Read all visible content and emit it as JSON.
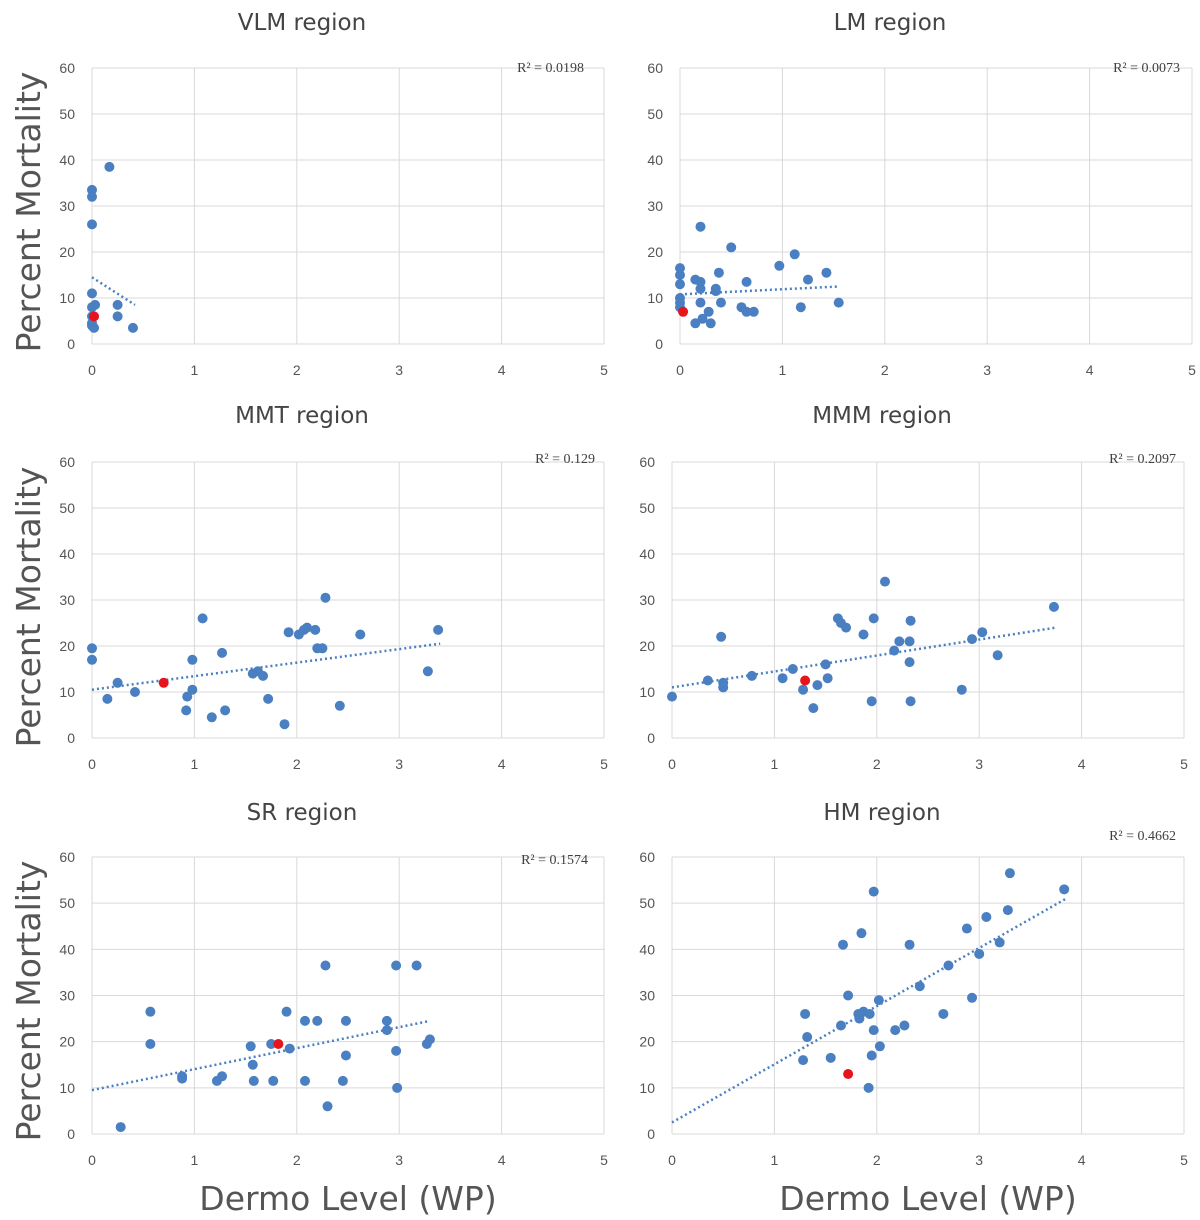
{
  "figure": {
    "ylabel": "Percent Mortality",
    "xlabel": "Dermo Level (WP)"
  },
  "chart_data": [
    {
      "type": "scatter",
      "title": "VLM region",
      "r2_label": "R² = 0.0198",
      "xlim": [
        0,
        5
      ],
      "ylim": [
        0,
        60
      ],
      "xticks": [
        "0",
        "1",
        "2",
        "3",
        "4",
        "5"
      ],
      "yticks": [
        "0",
        "10",
        "20",
        "30",
        "40",
        "50",
        "60"
      ],
      "grid": true,
      "colors": {
        "points": "#4a7fc1",
        "highlight": "#e8141c",
        "trend": "#4a7fc1"
      },
      "points": [
        [
          0,
          33.5
        ],
        [
          0,
          32
        ],
        [
          0,
          26
        ],
        [
          0.17,
          38.5
        ],
        [
          0,
          11
        ],
        [
          0,
          8
        ],
        [
          0.03,
          8.5
        ],
        [
          0,
          6
        ],
        [
          0,
          4.5
        ],
        [
          0,
          4
        ],
        [
          0.02,
          3.5
        ],
        [
          0.25,
          8.5
        ],
        [
          0.25,
          6
        ],
        [
          0.4,
          3.5
        ]
      ],
      "highlight": [
        [
          0.02,
          6
        ]
      ],
      "trendline": [
        [
          0,
          14.5
        ],
        [
          0.42,
          8.5
        ]
      ]
    },
    {
      "type": "scatter",
      "title": "LM region",
      "r2_label": "R² = 0.0073",
      "xlim": [
        0,
        5
      ],
      "ylim": [
        0,
        60
      ],
      "xticks": [
        "0",
        "1",
        "2",
        "3",
        "4",
        "5"
      ],
      "yticks": [
        "0",
        "10",
        "20",
        "30",
        "40",
        "50",
        "60"
      ],
      "grid": true,
      "colors": {
        "points": "#4a7fc1",
        "highlight": "#e8141c",
        "trend": "#4a7fc1"
      },
      "points": [
        [
          0,
          16.5
        ],
        [
          0,
          15
        ],
        [
          0,
          13
        ],
        [
          0,
          10
        ],
        [
          0,
          9
        ],
        [
          0,
          8
        ],
        [
          0.2,
          25.5
        ],
        [
          0.15,
          14
        ],
        [
          0.2,
          13.5
        ],
        [
          0.2,
          12
        ],
        [
          0.35,
          12
        ],
        [
          0.35,
          11.5
        ],
        [
          0.38,
          15.5
        ],
        [
          0.4,
          9
        ],
        [
          0.5,
          21
        ],
        [
          0.2,
          9
        ],
        [
          0.22,
          5.5
        ],
        [
          0.28,
          7
        ],
        [
          0.3,
          4.5
        ],
        [
          0.15,
          4.5
        ],
        [
          0.6,
          8
        ],
        [
          0.65,
          7
        ],
        [
          0.65,
          13.5
        ],
        [
          0.72,
          7
        ],
        [
          0.97,
          17
        ],
        [
          1.12,
          19.5
        ],
        [
          1.18,
          8
        ],
        [
          1.25,
          14
        ],
        [
          1.43,
          15.5
        ],
        [
          1.55,
          9
        ]
      ],
      "highlight": [
        [
          0.03,
          7
        ]
      ],
      "trendline": [
        [
          0,
          10.8
        ],
        [
          1.55,
          12.5
        ]
      ]
    },
    {
      "type": "scatter",
      "title": "MMT region",
      "r2_label": "R² = 0.129",
      "xlim": [
        0,
        5
      ],
      "ylim": [
        0,
        60
      ],
      "xticks": [
        "0",
        "1",
        "2",
        "3",
        "4",
        "5"
      ],
      "yticks": [
        "0",
        "10",
        "20",
        "30",
        "40",
        "50",
        "60"
      ],
      "grid": true,
      "colors": {
        "points": "#4a7fc1",
        "highlight": "#e8141c",
        "trend": "#4a7fc1"
      },
      "points": [
        [
          0,
          19.5
        ],
        [
          0,
          17
        ],
        [
          0.15,
          8.5
        ],
        [
          0.25,
          12
        ],
        [
          0.42,
          10
        ],
        [
          0.92,
          6
        ],
        [
          0.93,
          9
        ],
        [
          0.98,
          10.5
        ],
        [
          0.98,
          17
        ],
        [
          1.08,
          26
        ],
        [
          1.17,
          4.5
        ],
        [
          1.27,
          18.5
        ],
        [
          1.3,
          6
        ],
        [
          1.57,
          14
        ],
        [
          1.62,
          14.5
        ],
        [
          1.67,
          13.5
        ],
        [
          1.72,
          8.5
        ],
        [
          1.88,
          3
        ],
        [
          1.92,
          23
        ],
        [
          2.02,
          22.5
        ],
        [
          2.07,
          23.5
        ],
        [
          2.1,
          24
        ],
        [
          2.18,
          23.5
        ],
        [
          2.2,
          19.5
        ],
        [
          2.25,
          19.5
        ],
        [
          2.28,
          30.5
        ],
        [
          2.42,
          7
        ],
        [
          2.62,
          22.5
        ],
        [
          3.28,
          14.5
        ],
        [
          3.38,
          23.5
        ]
      ],
      "highlight": [
        [
          0.7,
          12
        ]
      ],
      "trendline": [
        [
          0,
          10.5
        ],
        [
          3.4,
          20.5
        ]
      ]
    },
    {
      "type": "scatter",
      "title": "MMM region",
      "r2_label": "R² = 0.2097",
      "xlim": [
        0,
        5
      ],
      "ylim": [
        0,
        60
      ],
      "xticks": [
        "0",
        "1",
        "2",
        "3",
        "4",
        "5"
      ],
      "yticks": [
        "0",
        "10",
        "20",
        "30",
        "40",
        "50",
        "60"
      ],
      "grid": true,
      "colors": {
        "points": "#4a7fc1",
        "highlight": "#e8141c",
        "trend": "#4a7fc1"
      },
      "points": [
        [
          0,
          9
        ],
        [
          0.35,
          12.5
        ],
        [
          0.48,
          22
        ],
        [
          0.5,
          11
        ],
        [
          0.5,
          12
        ],
        [
          0.78,
          13.5
        ],
        [
          1.08,
          13
        ],
        [
          1.18,
          15
        ],
        [
          1.28,
          10.5
        ],
        [
          1.38,
          6.5
        ],
        [
          1.42,
          11.5
        ],
        [
          1.5,
          16
        ],
        [
          1.52,
          13
        ],
        [
          1.62,
          26
        ],
        [
          1.65,
          25
        ],
        [
          1.7,
          24
        ],
        [
          1.87,
          22.5
        ],
        [
          1.95,
          8
        ],
        [
          1.97,
          26
        ],
        [
          2.08,
          34
        ],
        [
          2.17,
          19
        ],
        [
          2.22,
          21
        ],
        [
          2.32,
          21
        ],
        [
          2.32,
          16.5
        ],
        [
          2.33,
          25.5
        ],
        [
          2.33,
          8
        ],
        [
          2.83,
          10.5
        ],
        [
          2.93,
          21.5
        ],
        [
          3.03,
          23
        ],
        [
          3.18,
          18
        ],
        [
          3.73,
          28.5
        ]
      ],
      "highlight": [
        [
          1.3,
          12.5
        ]
      ],
      "trendline": [
        [
          0,
          11
        ],
        [
          3.75,
          24
        ]
      ]
    },
    {
      "type": "scatter",
      "title": "SR region",
      "r2_label": "R² = 0.1574",
      "xlim": [
        0,
        5
      ],
      "ylim": [
        0,
        60
      ],
      "xticks": [
        "0",
        "1",
        "2",
        "3",
        "4",
        "5"
      ],
      "yticks": [
        "0",
        "10",
        "20",
        "30",
        "40",
        "50",
        "60"
      ],
      "grid": true,
      "colors": {
        "points": "#4a7fc1",
        "highlight": "#e8141c",
        "trend": "#4a7fc1"
      },
      "points": [
        [
          0.28,
          1.5
        ],
        [
          0.57,
          26.5
        ],
        [
          0.57,
          19.5
        ],
        [
          0.88,
          12.5
        ],
        [
          0.88,
          12
        ],
        [
          1.22,
          11.5
        ],
        [
          1.27,
          12.5
        ],
        [
          1.55,
          19
        ],
        [
          1.57,
          15
        ],
        [
          1.58,
          11.5
        ],
        [
          1.77,
          11.5
        ],
        [
          1.75,
          19.5
        ],
        [
          1.9,
          26.5
        ],
        [
          1.93,
          18.5
        ],
        [
          2.08,
          24.5
        ],
        [
          2.08,
          11.5
        ],
        [
          2.2,
          24.5
        ],
        [
          2.28,
          36.5
        ],
        [
          2.3,
          6
        ],
        [
          2.45,
          11.5
        ],
        [
          2.48,
          24.5
        ],
        [
          2.48,
          17
        ],
        [
          2.88,
          24.5
        ],
        [
          2.88,
          22.5
        ],
        [
          2.97,
          36.5
        ],
        [
          2.97,
          18
        ],
        [
          2.98,
          10
        ],
        [
          3.17,
          36.5
        ],
        [
          3.27,
          19.5
        ],
        [
          3.3,
          20.5
        ]
      ],
      "highlight": [
        [
          1.82,
          19.5
        ]
      ],
      "trendline": [
        [
          0,
          9.5
        ],
        [
          3.3,
          24.5
        ]
      ]
    },
    {
      "type": "scatter",
      "title": "HM region",
      "r2_label": "R² = 0.4662",
      "xlim": [
        0,
        5
      ],
      "ylim": [
        0,
        60
      ],
      "xticks": [
        "0",
        "1",
        "2",
        "3",
        "4",
        "5"
      ],
      "yticks": [
        "0",
        "10",
        "20",
        "30",
        "40",
        "50",
        "60"
      ],
      "grid": true,
      "colors": {
        "points": "#4a7fc1",
        "highlight": "#e8141c",
        "trend": "#4a7fc1"
      },
      "points": [
        [
          1.3,
          26
        ],
        [
          1.32,
          21
        ],
        [
          1.28,
          16
        ],
        [
          1.55,
          16.5
        ],
        [
          1.65,
          23.5
        ],
        [
          1.67,
          41
        ],
        [
          1.72,
          30
        ],
        [
          1.82,
          26
        ],
        [
          1.85,
          43.5
        ],
        [
          1.83,
          25
        ],
        [
          1.87,
          26.5
        ],
        [
          1.93,
          26
        ],
        [
          1.95,
          17
        ],
        [
          1.97,
          22.5
        ],
        [
          1.97,
          52.5
        ],
        [
          1.92,
          10
        ],
        [
          2.02,
          29
        ],
        [
          2.03,
          19
        ],
        [
          2.18,
          22.5
        ],
        [
          2.27,
          23.5
        ],
        [
          2.32,
          41
        ],
        [
          2.42,
          32
        ],
        [
          2.65,
          26
        ],
        [
          2.7,
          36.5
        ],
        [
          2.88,
          44.5
        ],
        [
          2.93,
          29.5
        ],
        [
          3.0,
          39
        ],
        [
          3.07,
          47
        ],
        [
          3.2,
          41.5
        ],
        [
          3.28,
          48.5
        ],
        [
          3.3,
          56.5
        ],
        [
          3.83,
          53
        ]
      ],
      "highlight": [
        [
          1.72,
          13
        ]
      ],
      "trendline": [
        [
          0,
          2.5
        ],
        [
          3.85,
          51
        ]
      ]
    }
  ]
}
